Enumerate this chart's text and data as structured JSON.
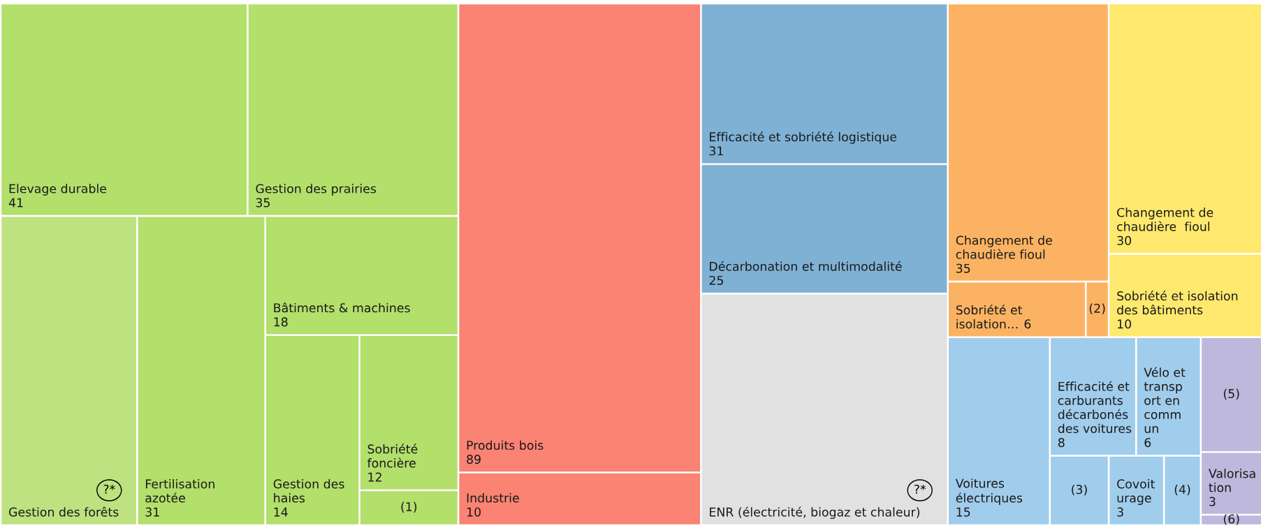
{
  "chart_data": {
    "type": "other",
    "categories": [
      "Elevage durable",
      "Gestion des prairies",
      "Gestion des forêts",
      "Fertilisation\nazotée",
      "Bâtiments & machines",
      "Gestion des\nhaies",
      "Sobriété\nfoncière",
      "(1)",
      "Produits bois",
      "Industrie",
      "Efficacité et sobriété logistique",
      "Décarbonation et multimodalité",
      "ENR (électricité, biogaz et chaleur)",
      "Changement de\nchaudière fioul",
      "Sobriété et\nisolation…",
      "(2)",
      "Changement de\nchaudière  fioul",
      "Sobriété et isolation\ndes bâtiments",
      "Voitures\nélectriques",
      "Efficacité et\ncarburants\ndécarbonés\ndes voitures",
      "Vélo et\ntransp\nort en\ncomm\nun",
      "(3)",
      "Covoit\nurage",
      "(4)",
      "(5)",
      "Valorisa\ntion",
      "(6)"
    ],
    "values": [
      41,
      35,
      null,
      31,
      18,
      14,
      12,
      null,
      89,
      10,
      31,
      25,
      null,
      35,
      6,
      null,
      30,
      10,
      15,
      8,
      6,
      null,
      3,
      null,
      null,
      3,
      null
    ],
    "value_labels": [
      "41",
      "35",
      null,
      "31",
      "18",
      "14",
      "12",
      null,
      "89",
      "10",
      "31",
      "25",
      null,
      "35",
      "6",
      null,
      "30",
      "10",
      "15",
      "8",
      "6",
      null,
      "3",
      null,
      null,
      "3",
      null
    ],
    "colors": [
      "#b3df6b",
      "#b3df6b",
      "#bde27f",
      "#b3df6b",
      "#b3df6b",
      "#b3df6b",
      "#b3df6b",
      "#b3df6b",
      "#fa8374",
      "#fa8374",
      "#7fb1d4",
      "#7fb1d4",
      "#e1e1e1",
      "#fbb363",
      "#fbb363",
      "#fbb363",
      "#fee96e",
      "#fee96e",
      "#a1cdec",
      "#a1cdec",
      "#a1cdec",
      "#a1cdec",
      "#a1cdec",
      "#a1cdec",
      "#bdb8dc",
      "#bdb8dc",
      "#bdb8dc"
    ],
    "annotations": [
      {
        "text": "?*",
        "x": "Gestion des forêts"
      },
      {
        "text": "?*",
        "x": "ENR (électricité, biogaz et chaleur)"
      }
    ]
  }
}
